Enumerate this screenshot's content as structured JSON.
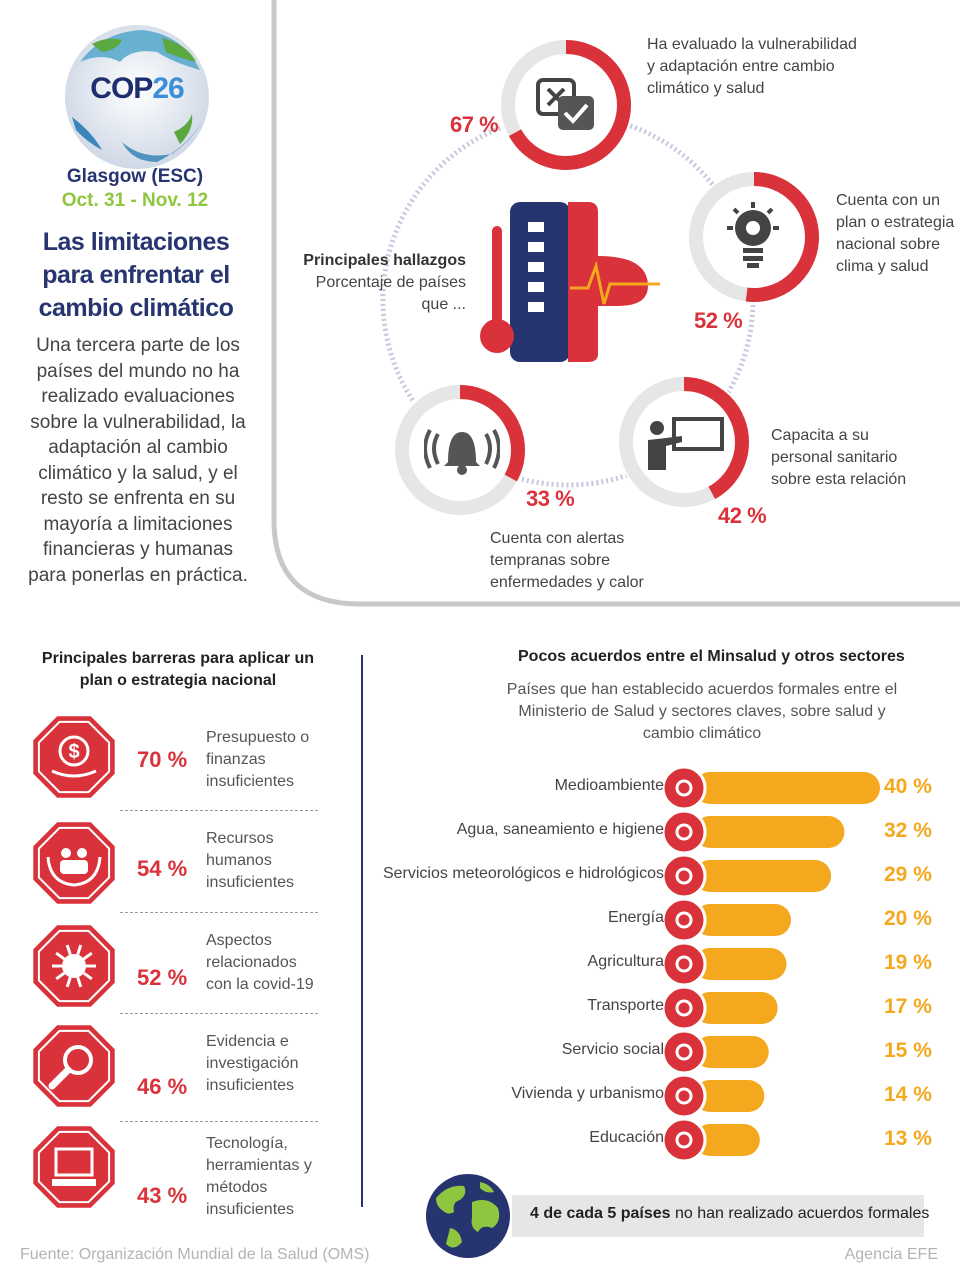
{
  "header": {
    "logo_prefix": "COP",
    "logo_number": "26",
    "city": "Glasgow (ESC)",
    "dates": "Oct. 31 - Nov. 12",
    "title": "Las limitaciones para enfrentar el cambio climático",
    "intro": "Una tercera parte de los países del mundo no ha realizado evaluaciones sobre la vulnerabilidad, la adaptación al cambio climático y la salud, y el resto se enfrenta en su mayoría a limitaciones financieras y humanas para ponerlas en práctica."
  },
  "findings": {
    "title": "Principales hallazgos",
    "subtitle": "Porcentaje de países que ...",
    "items": [
      {
        "pct_label": "67 %",
        "text": "Ha evaluado la vulnerabilidad y adaptación entre cambio climático y salud",
        "icon": "checklist-icon"
      },
      {
        "pct_label": "52 %",
        "text": "Cuenta con un plan o estrategia nacional sobre clima y salud",
        "icon": "lightbulb-gear-icon"
      },
      {
        "pct_label": "42 %",
        "text": "Capacita a su personal sanitario sobre esta relación",
        "icon": "teacher-board-icon"
      },
      {
        "pct_label": "33 %",
        "text": "Cuenta con alertas tempranas sobre enfermedades y calor",
        "icon": "alarm-bell-icon"
      }
    ]
  },
  "barriers": {
    "title": "Principales barreras para aplicar un plan o estrategia nacional",
    "items": [
      {
        "pct_label": "70 %",
        "text": "Presupuesto o finanzas insuficientes",
        "icon": "money-hand-icon"
      },
      {
        "pct_label": "54 %",
        "text": "Recursos humanos insuficientes",
        "icon": "people-hands-icon"
      },
      {
        "pct_label": "52 %",
        "text": "Aspectos relacionados con la covid-19",
        "icon": "virus-icon"
      },
      {
        "pct_label": "46 %",
        "text": "Evidencia e investigación insuficientes",
        "icon": "magnifier-icon"
      },
      {
        "pct_label": "43 %",
        "text": "Tecnología, herramientas y métodos insuficientes",
        "icon": "computer-icon"
      }
    ]
  },
  "agreements": {
    "title": "Pocos acuerdos entre el Minsalud y otros sectores",
    "subtitle": "Países que han establecido acuerdos formales entre el Ministerio de Salud y sectores claves, sobre salud y cambio climático",
    "callout_bold": "4 de cada 5 países",
    "callout_rest": " no han realizado acuerdos formales"
  },
  "chart_data": [
    {
      "type": "pie",
      "categories": [
        "Ha evaluado la vulnerabilidad y adaptación entre cambio climático y salud",
        "Cuenta con un plan o estrategia nacional sobre clima y salud",
        "Capacita a su personal sanitario sobre esta relación",
        "Cuenta con alertas tempranas sobre enfermedades y calor"
      ],
      "values": [
        67,
        52,
        42,
        33
      ],
      "title": "Principales hallazgos",
      "subtitle": "Porcentaje de países que ...",
      "colors": {
        "fill": "#d9323a",
        "track": "#e6e6e6"
      }
    },
    {
      "type": "table",
      "categories": [
        "Presupuesto o finanzas insuficientes",
        "Recursos humanos insuficientes",
        "Aspectos relacionados con la covid-19",
        "Evidencia e investigación insuficientes",
        "Tecnología, herramientas y métodos insuficientes"
      ],
      "values": [
        70,
        54,
        52,
        46,
        43
      ],
      "title": "Principales barreras para aplicar un plan o estrategia nacional",
      "colors": {
        "accent": "#d9323a"
      }
    },
    {
      "type": "bar",
      "orientation": "horizontal",
      "categories": [
        "Medioambiente",
        "Agua, saneamiento e higiene",
        "Servicios meteorológicos e hidrológicos",
        "Energía",
        "Agricultura",
        "Transporte",
        "Servicio social",
        "Vivienda y urbanismo",
        "Educación"
      ],
      "values": [
        40,
        32,
        29,
        20,
        19,
        17,
        15,
        14,
        13
      ],
      "value_labels": [
        "40 %",
        "32 %",
        "29 %",
        "20 %",
        "19 %",
        "17 %",
        "15 %",
        "14 %",
        "13 %"
      ],
      "icons": [
        "leaf-hand-icon",
        "water-drop-icon",
        "sun-cloud-icon",
        "lightning-icon",
        "plant-fire-icon",
        "bus-icon",
        "family-hands-icon",
        "building-icon",
        "graduation-cap-icon"
      ],
      "title": "Pocos acuerdos entre el Minsalud y otros sectores",
      "subtitle": "Países que han establecido acuerdos formales entre el Ministerio de Salud y sectores claves, sobre salud y cambio climático",
      "xlim": [
        0,
        40
      ],
      "colors": {
        "bar": "#f4a81d",
        "icon": "#d9323a",
        "label": "#f4a81d"
      }
    }
  ],
  "footer": {
    "source": "Fuente: Organización Mundial de la Salud (OMS)",
    "agency": "Agencia EFE"
  },
  "colors": {
    "navy": "#26346f",
    "green": "#8fc63f",
    "red": "#d9323a",
    "orange": "#f4a81d"
  }
}
